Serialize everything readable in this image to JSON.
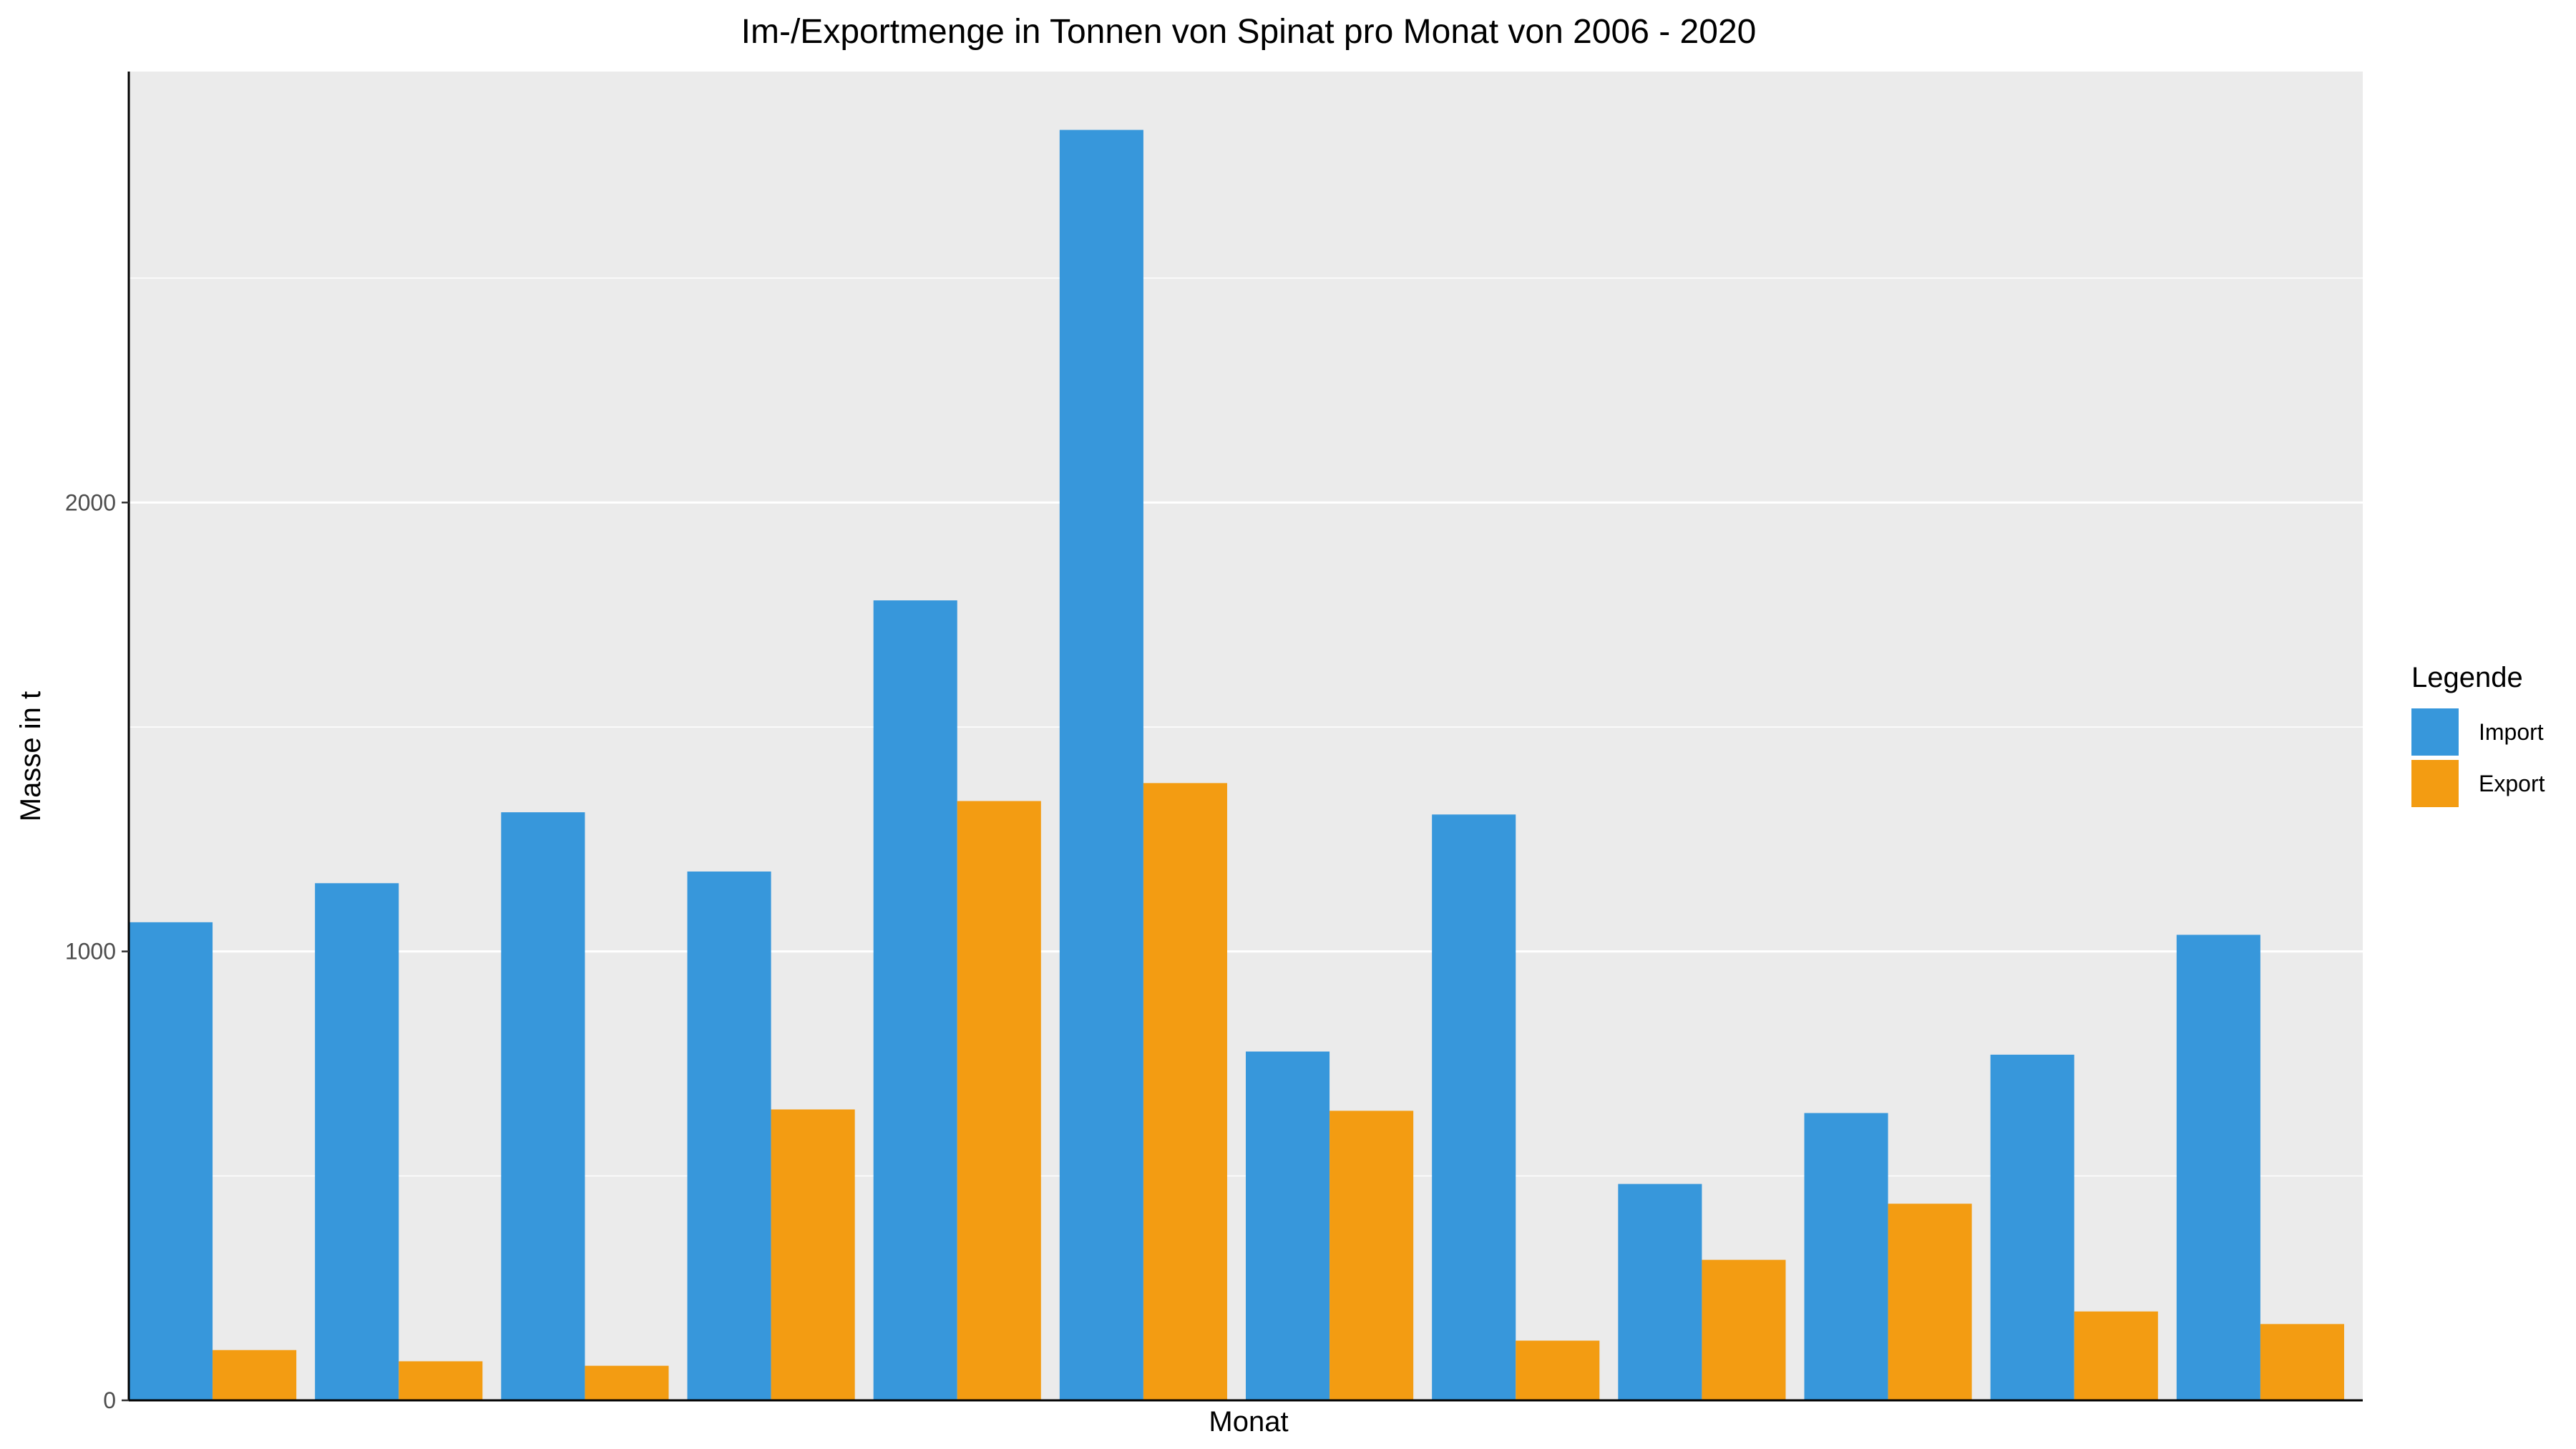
{
  "chart_data": {
    "type": "bar",
    "title": "Im-/Exportmenge in Tonnen von Spinat pro Monat von 2006 - 2020",
    "xlabel": "Monat",
    "ylabel": "Masse in t",
    "categories": [
      "",
      "",
      "",
      "",
      "",
      "",
      "",
      "",
      "",
      "",
      "",
      ""
    ],
    "series": [
      {
        "name": "Import",
        "color": "#3797db",
        "values": [
          1065,
          1152,
          1310,
          1178,
          1782,
          2830,
          777,
          1305,
          482,
          640,
          770,
          1037
        ]
      },
      {
        "name": "Export",
        "color": "#f39c12",
        "values": [
          112,
          87,
          77,
          648,
          1335,
          1375,
          645,
          133,
          313,
          438,
          198,
          170
        ]
      }
    ],
    "ylim": [
      0,
      2960
    ],
    "yticks": [
      0,
      1000,
      2000
    ],
    "grid": true,
    "legend": {
      "title": "Legende",
      "placement": "right"
    },
    "panel_background": "#ebebeb",
    "grid_color": "#ffffff"
  }
}
